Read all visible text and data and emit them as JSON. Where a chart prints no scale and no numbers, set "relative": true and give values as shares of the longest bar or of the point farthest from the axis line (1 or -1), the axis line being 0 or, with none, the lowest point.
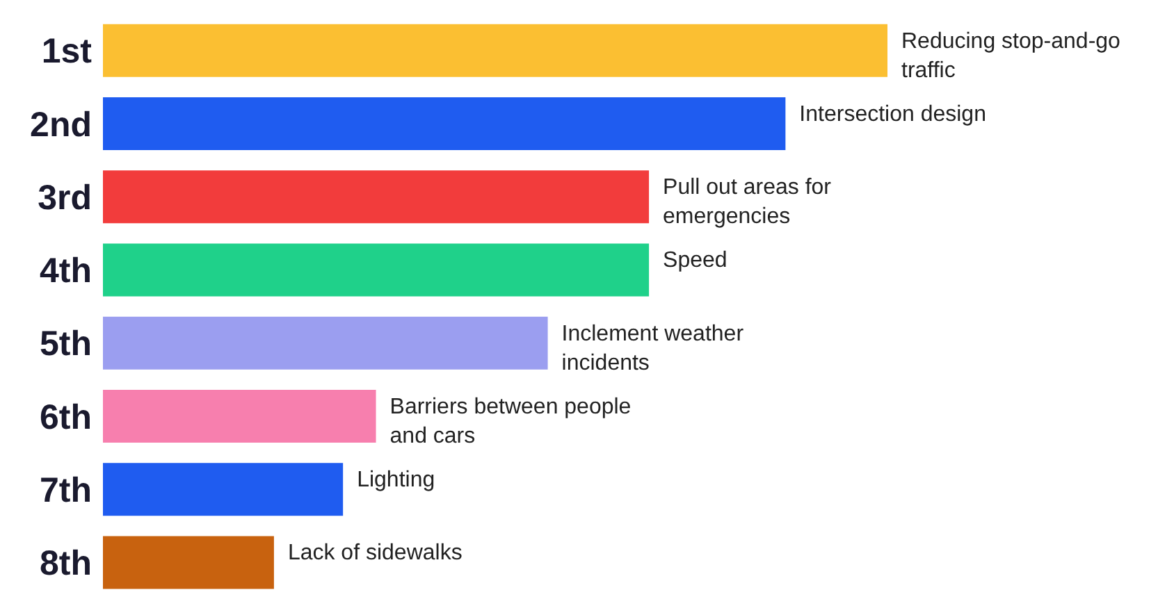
{
  "chart_data": {
    "type": "bar",
    "orientation": "horizontal",
    "relative": true,
    "categories": [
      "1st",
      "2nd",
      "3rd",
      "4th",
      "5th",
      "6th",
      "7th",
      "8th"
    ],
    "values": [
      1,
      0.87,
      0.696,
      0.696,
      0.567,
      0.348,
      0.306,
      0.218
    ],
    "colors": [
      "#fbbf32",
      "#1f5cf0",
      "#f23c3c",
      "#1fd18a",
      "#9b9ef0",
      "#f77fae",
      "#1f5cf0",
      "#c8620f"
    ],
    "annotations": [
      {
        "text": "Reducing stop-and-go traffic",
        "x": 1,
        "y": "1st"
      },
      {
        "text": "Intersection design",
        "x": 0.87,
        "y": "2nd"
      },
      {
        "text": "Pull out areas for emergencies",
        "x": 0.696,
        "y": "3rd"
      },
      {
        "text": "Speed",
        "x": 0.696,
        "y": "4th"
      },
      {
        "text": "Inclement weather incidents",
        "x": 0.567,
        "y": "5th"
      },
      {
        "text": "Barriers between people and cars",
        "x": 0.348,
        "y": "6th"
      },
      {
        "text": "Lighting",
        "x": 0.306,
        "y": "7th"
      },
      {
        "text": "Lack of sidewalks",
        "x": 0.218,
        "y": "8th"
      }
    ],
    "grid": false,
    "legend": false
  }
}
